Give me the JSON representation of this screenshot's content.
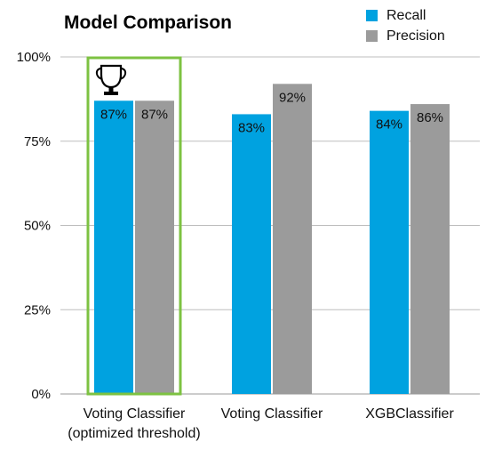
{
  "chart_data": {
    "type": "bar",
    "title": "Model Comparison",
    "xlabel": "",
    "ylabel": "",
    "categories": [
      "Voting Classifier\n(optimized threshold)",
      "Voting Classifier",
      "XGBClassifier"
    ],
    "series": [
      {
        "name": "Recall",
        "values": [
          87,
          83,
          84
        ],
        "color": "#00a2e0"
      },
      {
        "name": "Precision",
        "values": [
          87,
          92,
          86
        ],
        "color": "#9b9b9b"
      }
    ],
    "data_labels": [
      [
        "87%",
        "87%"
      ],
      [
        "83%",
        "92%"
      ],
      [
        "84%",
        "86%"
      ]
    ],
    "yticks": [
      0,
      25,
      50,
      75,
      100
    ],
    "ytick_labels": [
      "0%",
      "25%",
      "50%",
      "75%",
      "100%"
    ],
    "ylim": [
      0,
      100
    ],
    "grid": true,
    "legend": "top-right",
    "highlight": {
      "category_index": 0,
      "color": "#7dc242",
      "icon": "trophy-icon"
    }
  }
}
